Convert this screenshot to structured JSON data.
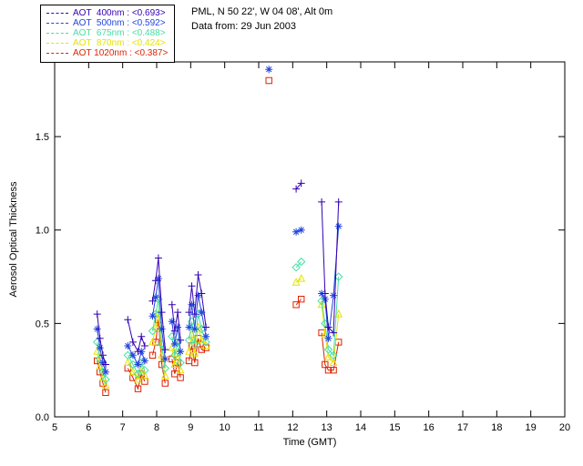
{
  "header": {
    "line1": "PML, N 50 22', W 04 08', Alt 0m",
    "line2": "Data from: 29 Jun 2003"
  },
  "chart_data": {
    "type": "scatter",
    "xlabel": "Time (GMT)",
    "ylabel": "Aerosol Optical Thickness",
    "xlim": [
      5,
      20
    ],
    "ylim": [
      0,
      1.9
    ],
    "xticks": [
      5,
      6,
      7,
      8,
      9,
      10,
      11,
      12,
      13,
      14,
      15,
      16,
      17,
      18,
      19,
      20
    ],
    "yticks": [
      0,
      0.5,
      1.0,
      1.5
    ],
    "ytick_labels": [
      "0.0",
      "0.5",
      "1.0",
      "1.5"
    ],
    "grid": false,
    "legend_position": "top-left",
    "gap_threshold": 0.18,
    "series": [
      {
        "label": "AOT  400nm : <0.693>",
        "wavelength": "400nm",
        "mean": "<0.693>",
        "color": "#3300b3",
        "marker": "plus",
        "points": [
          [
            6.25,
            0.55
          ],
          [
            6.33,
            0.42
          ],
          [
            6.42,
            0.33
          ],
          [
            6.5,
            0.28
          ],
          [
            7.15,
            0.52
          ],
          [
            7.3,
            0.4
          ],
          [
            7.45,
            0.35
          ],
          [
            7.55,
            0.43
          ],
          [
            7.65,
            0.38
          ],
          [
            7.88,
            0.62
          ],
          [
            7.97,
            0.73
          ],
          [
            8.05,
            0.85
          ],
          [
            8.15,
            0.56
          ],
          [
            8.25,
            0.36
          ],
          [
            8.45,
            0.6
          ],
          [
            8.53,
            0.46
          ],
          [
            8.62,
            0.56
          ],
          [
            8.7,
            0.41
          ],
          [
            8.95,
            0.56
          ],
          [
            9.03,
            0.7
          ],
          [
            9.12,
            0.55
          ],
          [
            9.22,
            0.76
          ],
          [
            9.32,
            0.66
          ],
          [
            9.45,
            0.48
          ],
          [
            12.1,
            1.22
          ],
          [
            12.25,
            1.25
          ],
          [
            12.85,
            1.15
          ],
          [
            12.95,
            0.66
          ],
          [
            13.05,
            0.48
          ],
          [
            13.2,
            0.45
          ],
          [
            13.35,
            1.15
          ]
        ]
      },
      {
        "label": "AOT  500nm : <0.592>",
        "wavelength": "500nm",
        "mean": "<0.592>",
        "color": "#2244dd",
        "marker": "asterisk",
        "points": [
          [
            6.25,
            0.47
          ],
          [
            6.33,
            0.37
          ],
          [
            6.42,
            0.29
          ],
          [
            6.5,
            0.24
          ],
          [
            7.15,
            0.38
          ],
          [
            7.3,
            0.33
          ],
          [
            7.45,
            0.28
          ],
          [
            7.55,
            0.35
          ],
          [
            7.65,
            0.3
          ],
          [
            7.88,
            0.54
          ],
          [
            7.97,
            0.64
          ],
          [
            8.05,
            0.74
          ],
          [
            8.15,
            0.47
          ],
          [
            8.25,
            0.31
          ],
          [
            8.45,
            0.51
          ],
          [
            8.53,
            0.39
          ],
          [
            8.62,
            0.48
          ],
          [
            8.7,
            0.35
          ],
          [
            8.95,
            0.48
          ],
          [
            9.03,
            0.6
          ],
          [
            9.12,
            0.47
          ],
          [
            9.22,
            0.65
          ],
          [
            9.32,
            0.56
          ],
          [
            9.45,
            0.43
          ],
          [
            11.3,
            1.86
          ],
          [
            12.1,
            0.99
          ],
          [
            12.25,
            1.0
          ],
          [
            12.85,
            0.66
          ],
          [
            12.95,
            0.63
          ],
          [
            13.05,
            0.42
          ],
          [
            13.2,
            0.65
          ],
          [
            13.35,
            1.02
          ]
        ]
      },
      {
        "label": "AOT  675nm : <0.488>",
        "wavelength": "675nm",
        "mean": "<0.488>",
        "color": "#44dda4",
        "marker": "diamond",
        "points": [
          [
            6.25,
            0.4
          ],
          [
            6.33,
            0.31
          ],
          [
            6.42,
            0.24
          ],
          [
            6.5,
            0.2
          ],
          [
            7.15,
            0.33
          ],
          [
            7.3,
            0.28
          ],
          [
            7.45,
            0.23
          ],
          [
            7.55,
            0.29
          ],
          [
            7.65,
            0.25
          ],
          [
            7.88,
            0.46
          ],
          [
            7.97,
            0.55
          ],
          [
            8.05,
            0.63
          ],
          [
            8.15,
            0.39
          ],
          [
            8.25,
            0.26
          ],
          [
            8.45,
            0.43
          ],
          [
            8.53,
            0.33
          ],
          [
            8.62,
            0.4
          ],
          [
            8.7,
            0.29
          ],
          [
            8.95,
            0.41
          ],
          [
            9.03,
            0.51
          ],
          [
            9.12,
            0.39
          ],
          [
            9.22,
            0.55
          ],
          [
            9.32,
            0.47
          ],
          [
            9.45,
            0.4
          ],
          [
            12.1,
            0.8
          ],
          [
            12.25,
            0.83
          ],
          [
            12.85,
            0.62
          ],
          [
            12.95,
            0.5
          ],
          [
            13.05,
            0.36
          ],
          [
            13.2,
            0.33
          ],
          [
            13.35,
            0.75
          ]
        ]
      },
      {
        "label": "AOT  870nm : <0.424>",
        "wavelength": "870nm",
        "mean": "<0.424>",
        "color": "#e3e300",
        "marker": "triangle",
        "points": [
          [
            6.25,
            0.35
          ],
          [
            6.33,
            0.27
          ],
          [
            6.42,
            0.21
          ],
          [
            6.5,
            0.17
          ],
          [
            7.15,
            0.29
          ],
          [
            7.3,
            0.24
          ],
          [
            7.45,
            0.2
          ],
          [
            7.55,
            0.25
          ],
          [
            7.65,
            0.22
          ],
          [
            7.88,
            0.4
          ],
          [
            7.97,
            0.48
          ],
          [
            8.05,
            0.55
          ],
          [
            8.15,
            0.33
          ],
          [
            8.25,
            0.22
          ],
          [
            8.45,
            0.37
          ],
          [
            8.53,
            0.28
          ],
          [
            8.62,
            0.34
          ],
          [
            8.7,
            0.25
          ],
          [
            8.95,
            0.35
          ],
          [
            9.03,
            0.44
          ],
          [
            9.12,
            0.34
          ],
          [
            9.22,
            0.48
          ],
          [
            9.32,
            0.41
          ],
          [
            9.45,
            0.38
          ],
          [
            12.1,
            0.72
          ],
          [
            12.25,
            0.74
          ],
          [
            12.85,
            0.6
          ],
          [
            12.95,
            0.44
          ],
          [
            13.05,
            0.32
          ],
          [
            13.2,
            0.29
          ],
          [
            13.35,
            0.55
          ]
        ]
      },
      {
        "label": "AOT 1020nm : <0.387>",
        "wavelength": "1020nm",
        "mean": "<0.387>",
        "color": "#dd2200",
        "marker": "square",
        "points": [
          [
            6.25,
            0.3
          ],
          [
            6.33,
            0.24
          ],
          [
            6.42,
            0.18
          ],
          [
            6.5,
            0.13
          ],
          [
            7.15,
            0.26
          ],
          [
            7.3,
            0.21
          ],
          [
            7.45,
            0.15
          ],
          [
            7.55,
            0.23
          ],
          [
            7.65,
            0.19
          ],
          [
            7.88,
            0.33
          ],
          [
            7.97,
            0.4
          ],
          [
            8.05,
            0.52
          ],
          [
            8.15,
            0.28
          ],
          [
            8.25,
            0.18
          ],
          [
            8.45,
            0.31
          ],
          [
            8.53,
            0.23
          ],
          [
            8.62,
            0.29
          ],
          [
            8.7,
            0.21
          ],
          [
            8.95,
            0.3
          ],
          [
            9.03,
            0.38
          ],
          [
            9.12,
            0.29
          ],
          [
            9.22,
            0.42
          ],
          [
            9.32,
            0.36
          ],
          [
            9.45,
            0.37
          ],
          [
            11.3,
            1.8
          ],
          [
            12.1,
            0.6
          ],
          [
            12.25,
            0.63
          ],
          [
            12.85,
            0.45
          ],
          [
            12.95,
            0.28
          ],
          [
            13.05,
            0.25
          ],
          [
            13.2,
            0.25
          ],
          [
            13.35,
            0.4
          ]
        ]
      }
    ]
  }
}
